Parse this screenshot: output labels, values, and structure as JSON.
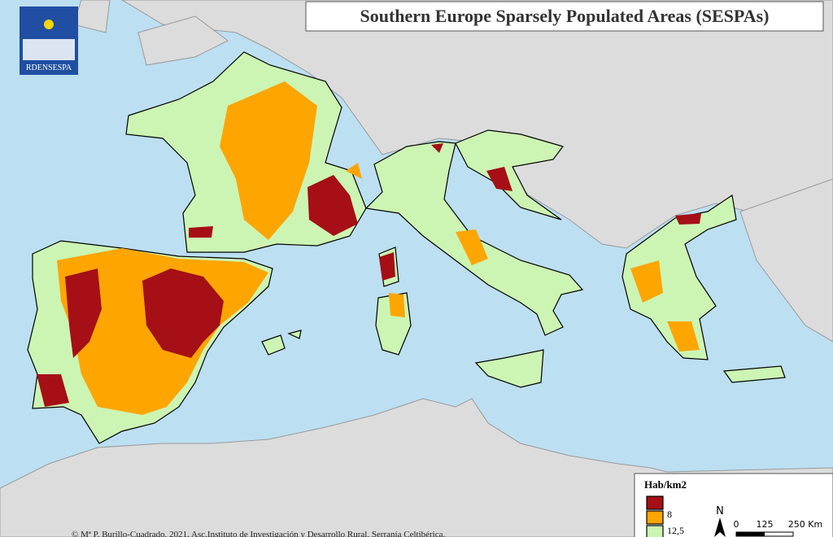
{
  "logo": {
    "text": "RDENSESPA"
  },
  "title": "Southern Europe Sparsely Populated Areas (SESPAs)",
  "legend": {
    "title": "Hab/km2",
    "items": [
      {
        "label": "8",
        "color": "#a50f15"
      },
      {
        "label": "12,5",
        "color": "#ffa500"
      },
      {
        "color": "#ccf5b3"
      }
    ]
  },
  "scale": {
    "north": "N",
    "labels": [
      "0",
      "125",
      "250 Km"
    ]
  },
  "credit": "© Mª P. Burillo-Cuadrado, 2021. Asc.Instituto de Investigación y Desarrollo Rural, Serranía Celtibérica."
}
